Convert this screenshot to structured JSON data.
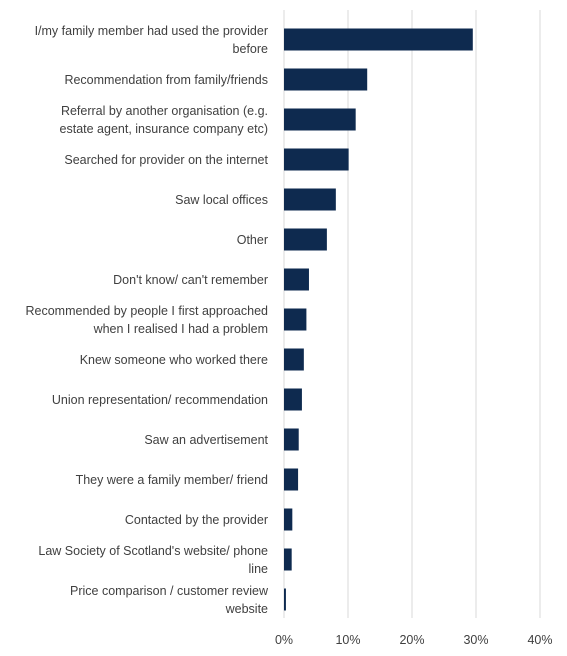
{
  "chart_data": {
    "type": "bar",
    "orientation": "horizontal",
    "categories": [
      [
        "I/my family member had used the provider",
        "before"
      ],
      [
        "Recommendation from family/friends"
      ],
      [
        "Referral by another organisation (e.g.",
        "estate agent, insurance company etc)"
      ],
      [
        "Searched for provider on the internet"
      ],
      [
        "Saw local offices"
      ],
      [
        "Other"
      ],
      [
        "Don't know/ can't remember"
      ],
      [
        "Recommended by people I first approached",
        "when I realised I had a problem"
      ],
      [
        "Knew someone who worked there"
      ],
      [
        "Union representation/ recommendation"
      ],
      [
        "Saw an advertisement"
      ],
      [
        "They were a family member/ friend"
      ],
      [
        "Contacted by the provider"
      ],
      [
        "Law Society of Scotland's website/ phone",
        "line"
      ],
      [
        "Price comparison / customer review",
        "website"
      ]
    ],
    "values": [
      29.5,
      13,
      11.2,
      10.1,
      8.1,
      6.7,
      3.9,
      3.5,
      3.1,
      2.8,
      2.3,
      2.2,
      1.3,
      1.2,
      0.3
    ],
    "xlim": [
      0,
      40
    ],
    "ticks": [
      0,
      10,
      20,
      30,
      40
    ],
    "tick_labels": [
      "0%",
      "10%",
      "20%",
      "30%",
      "40%"
    ],
    "bar_color": "#0e2a4f",
    "grid_color": "#d9d9d9",
    "grid": true,
    "title": "",
    "xlabel": "",
    "ylabel": ""
  }
}
